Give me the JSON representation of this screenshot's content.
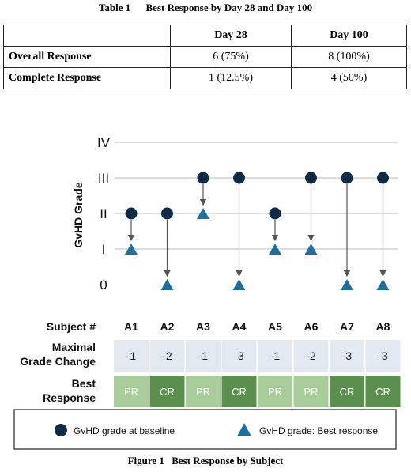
{
  "table": {
    "title_label": "Table 1",
    "title_text": "Best Response by Day 28 and Day 100",
    "columns": [
      "",
      "Day 28",
      "Day 100"
    ],
    "rows": [
      {
        "label": "Overall Response",
        "day28": "6 (75%)",
        "day100": "8 (100%)"
      },
      {
        "label": "Complete Response",
        "day28": "1 (12.5%)",
        "day100": "4 (50%)"
      }
    ]
  },
  "chart_data": {
    "type": "scatter",
    "ylabel": "GvHD Grade",
    "yticks": [
      "0",
      "I",
      "II",
      "III",
      "IV"
    ],
    "ylim": [
      0,
      4
    ],
    "grid": true,
    "subject_header": "Subject #",
    "change_header": [
      "Maximal",
      "Grade Change"
    ],
    "response_header": [
      "Best",
      "Response"
    ],
    "subjects": [
      {
        "id": "A1",
        "baseline": 2,
        "best": 1,
        "change": "-1",
        "response": "PR"
      },
      {
        "id": "A2",
        "baseline": 2,
        "best": 0,
        "change": "-2",
        "response": "CR"
      },
      {
        "id": "A3",
        "baseline": 3,
        "best": 2,
        "change": "-1",
        "response": "PR"
      },
      {
        "id": "A4",
        "baseline": 3,
        "best": 0,
        "change": "-3",
        "response": "CR"
      },
      {
        "id": "A5",
        "baseline": 2,
        "best": 1,
        "change": "-1",
        "response": "PR"
      },
      {
        "id": "A6",
        "baseline": 3,
        "best": 1,
        "change": "-2",
        "response": "PR"
      },
      {
        "id": "A7",
        "baseline": 3,
        "best": 0,
        "change": "-3",
        "response": "CR"
      },
      {
        "id": "A8",
        "baseline": 3,
        "best": 0,
        "change": "-3",
        "response": "CR"
      }
    ],
    "legend": {
      "position": "bottom",
      "baseline_label": "GvHD grade at baseline",
      "best_label": "GvHD grade: Best response"
    },
    "colors": {
      "marker": "#0f2a44",
      "triangle": "#1f6f9e",
      "arrow": "#555555",
      "grid": "#c8c8c8",
      "change_bg": "#e3e9f1",
      "pr_bg": "#a9cc9b",
      "cr_bg": "#5a8f4d"
    }
  },
  "figure": {
    "caption_label": "Figure 1",
    "caption_text": "Best Response by Subject"
  }
}
